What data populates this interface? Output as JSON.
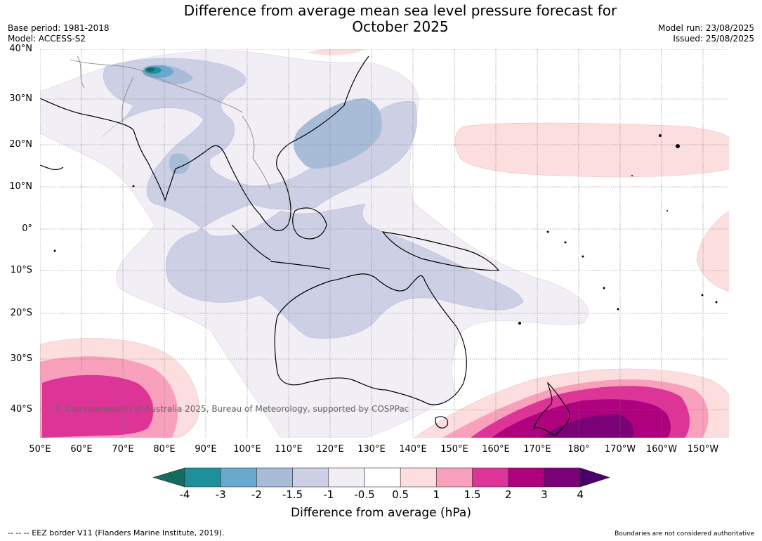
{
  "title_line1": "Difference from average mean sea level pressure forecast for",
  "title_line2": "October 2025",
  "meta_left": {
    "base_period": "Base period: 1981-2018",
    "model": "Model: ACCESS-S2"
  },
  "meta_right": {
    "model_run": "Model run: 23/08/2025",
    "issued": "Issued: 25/08/2025"
  },
  "lat_labels": [
    "40°N",
    "30°N",
    "20°N",
    "10°N",
    "0°",
    "10°S",
    "20°S",
    "30°S",
    "40°S"
  ],
  "lon_labels": [
    "50°E",
    "60°E",
    "70°E",
    "80°E",
    "90°E",
    "100°E",
    "110°E",
    "120°E",
    "130°E",
    "140°E",
    "150°E",
    "160°E",
    "170°E",
    "180°",
    "170°W",
    "160°W",
    "150°W"
  ],
  "copyright": "© Commonwealth of Australia 2025, Bureau of Meteorology, supported by COSPPac",
  "colorbar": {
    "label": "Difference from average (hPa)",
    "ticks": [
      "-4",
      "-3",
      "-2",
      "-1.5",
      "-1",
      "-0.5",
      "0.5",
      "1",
      "1.5",
      "2",
      "3",
      "4"
    ],
    "colors": [
      "#146b60",
      "#1f8f99",
      "#6aa9cf",
      "#a8bcd8",
      "#cdd0e5",
      "#f2eef6",
      "#ffffff",
      "#fddede",
      "#f9a0bd",
      "#dd3497",
      "#ae017e",
      "#7a0177",
      "#49006a"
    ]
  },
  "footer_left": "--  --  -- EEZ border V11 (Flanders Marine Institute, 2019).",
  "footer_right": "Boundaries are not considered authoritative"
}
